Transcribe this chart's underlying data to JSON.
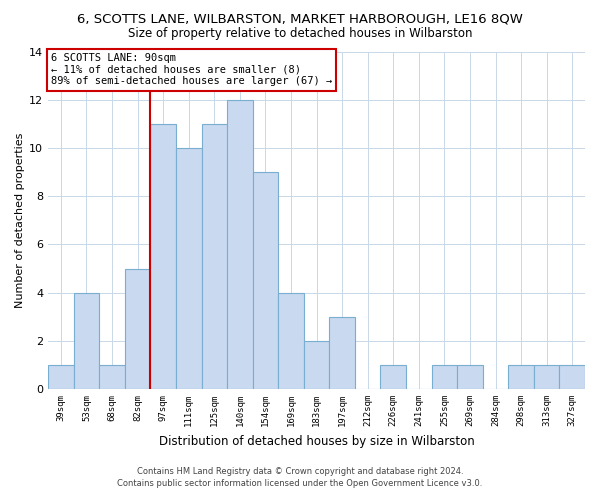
{
  "title": "6, SCOTTS LANE, WILBARSTON, MARKET HARBOROUGH, LE16 8QW",
  "subtitle": "Size of property relative to detached houses in Wilbarston",
  "xlabel": "Distribution of detached houses by size in Wilbarston",
  "ylabel": "Number of detached properties",
  "bar_labels": [
    "39sqm",
    "53sqm",
    "68sqm",
    "82sqm",
    "97sqm",
    "111sqm",
    "125sqm",
    "140sqm",
    "154sqm",
    "169sqm",
    "183sqm",
    "197sqm",
    "212sqm",
    "226sqm",
    "241sqm",
    "255sqm",
    "269sqm",
    "284sqm",
    "298sqm",
    "313sqm",
    "327sqm"
  ],
  "bar_values": [
    1,
    4,
    1,
    5,
    11,
    10,
    11,
    12,
    9,
    4,
    2,
    3,
    0,
    1,
    0,
    1,
    1,
    0,
    1,
    1,
    1
  ],
  "bar_color": "#c9d9ef",
  "bar_edge_color": "#7aaed0",
  "vline_color": "#cc0000",
  "annotation_line1": "6 SCOTTS LANE: 90sqm",
  "annotation_line2": "← 11% of detached houses are smaller (8)",
  "annotation_line3": "89% of semi-detached houses are larger (67) →",
  "annotation_box_color": "#ffffff",
  "annotation_box_edge": "#cc0000",
  "ylim": [
    0,
    14
  ],
  "yticks": [
    0,
    2,
    4,
    6,
    8,
    10,
    12,
    14
  ],
  "footer_line1": "Contains HM Land Registry data © Crown copyright and database right 2024.",
  "footer_line2": "Contains public sector information licensed under the Open Government Licence v3.0.",
  "background_color": "#ffffff",
  "grid_color": "#c8d8e8"
}
